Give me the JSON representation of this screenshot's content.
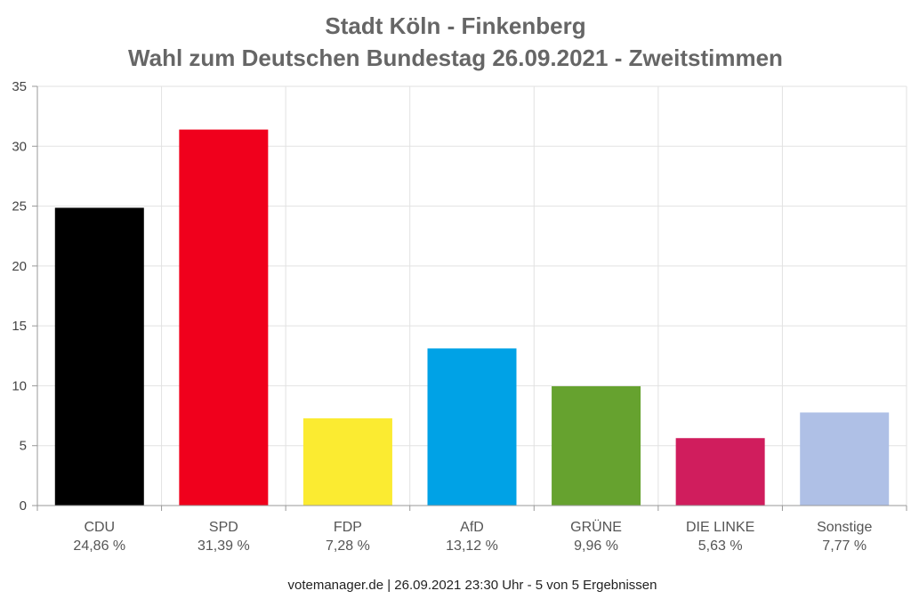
{
  "chart_data": {
    "type": "bar",
    "title": [
      "Stadt Köln - Finkenberg",
      "Wahl zum Deutschen Bundestag 26.09.2021  - Zweitstimmen"
    ],
    "xlabel": "",
    "ylabel": "",
    "ylim": [
      0,
      35
    ],
    "yticks": [
      "0",
      "5",
      "10",
      "15",
      "20",
      "25",
      "30",
      "35"
    ],
    "grid": true,
    "categories": [
      "CDU",
      "SPD",
      "FDP",
      "AfD",
      "GRÜNE",
      "DIE LINKE",
      "Sonstige"
    ],
    "values": [
      24.86,
      31.39,
      7.28,
      13.12,
      9.96,
      5.63,
      7.77
    ],
    "value_labels": [
      "24,86 %",
      "31,39 %",
      "7,28 %",
      "13,12 %",
      "9,96 %",
      "5,63 %",
      "7,77 %"
    ],
    "colors": [
      "#000000",
      "#f0001c",
      "#fbeb31",
      "#00a2e6",
      "#66a22f",
      "#d01d5d",
      "#afc0e6"
    ]
  },
  "footer": "votemanager.de | 26.09.2021 23:30 Uhr - 5 von 5 Ergebnissen"
}
